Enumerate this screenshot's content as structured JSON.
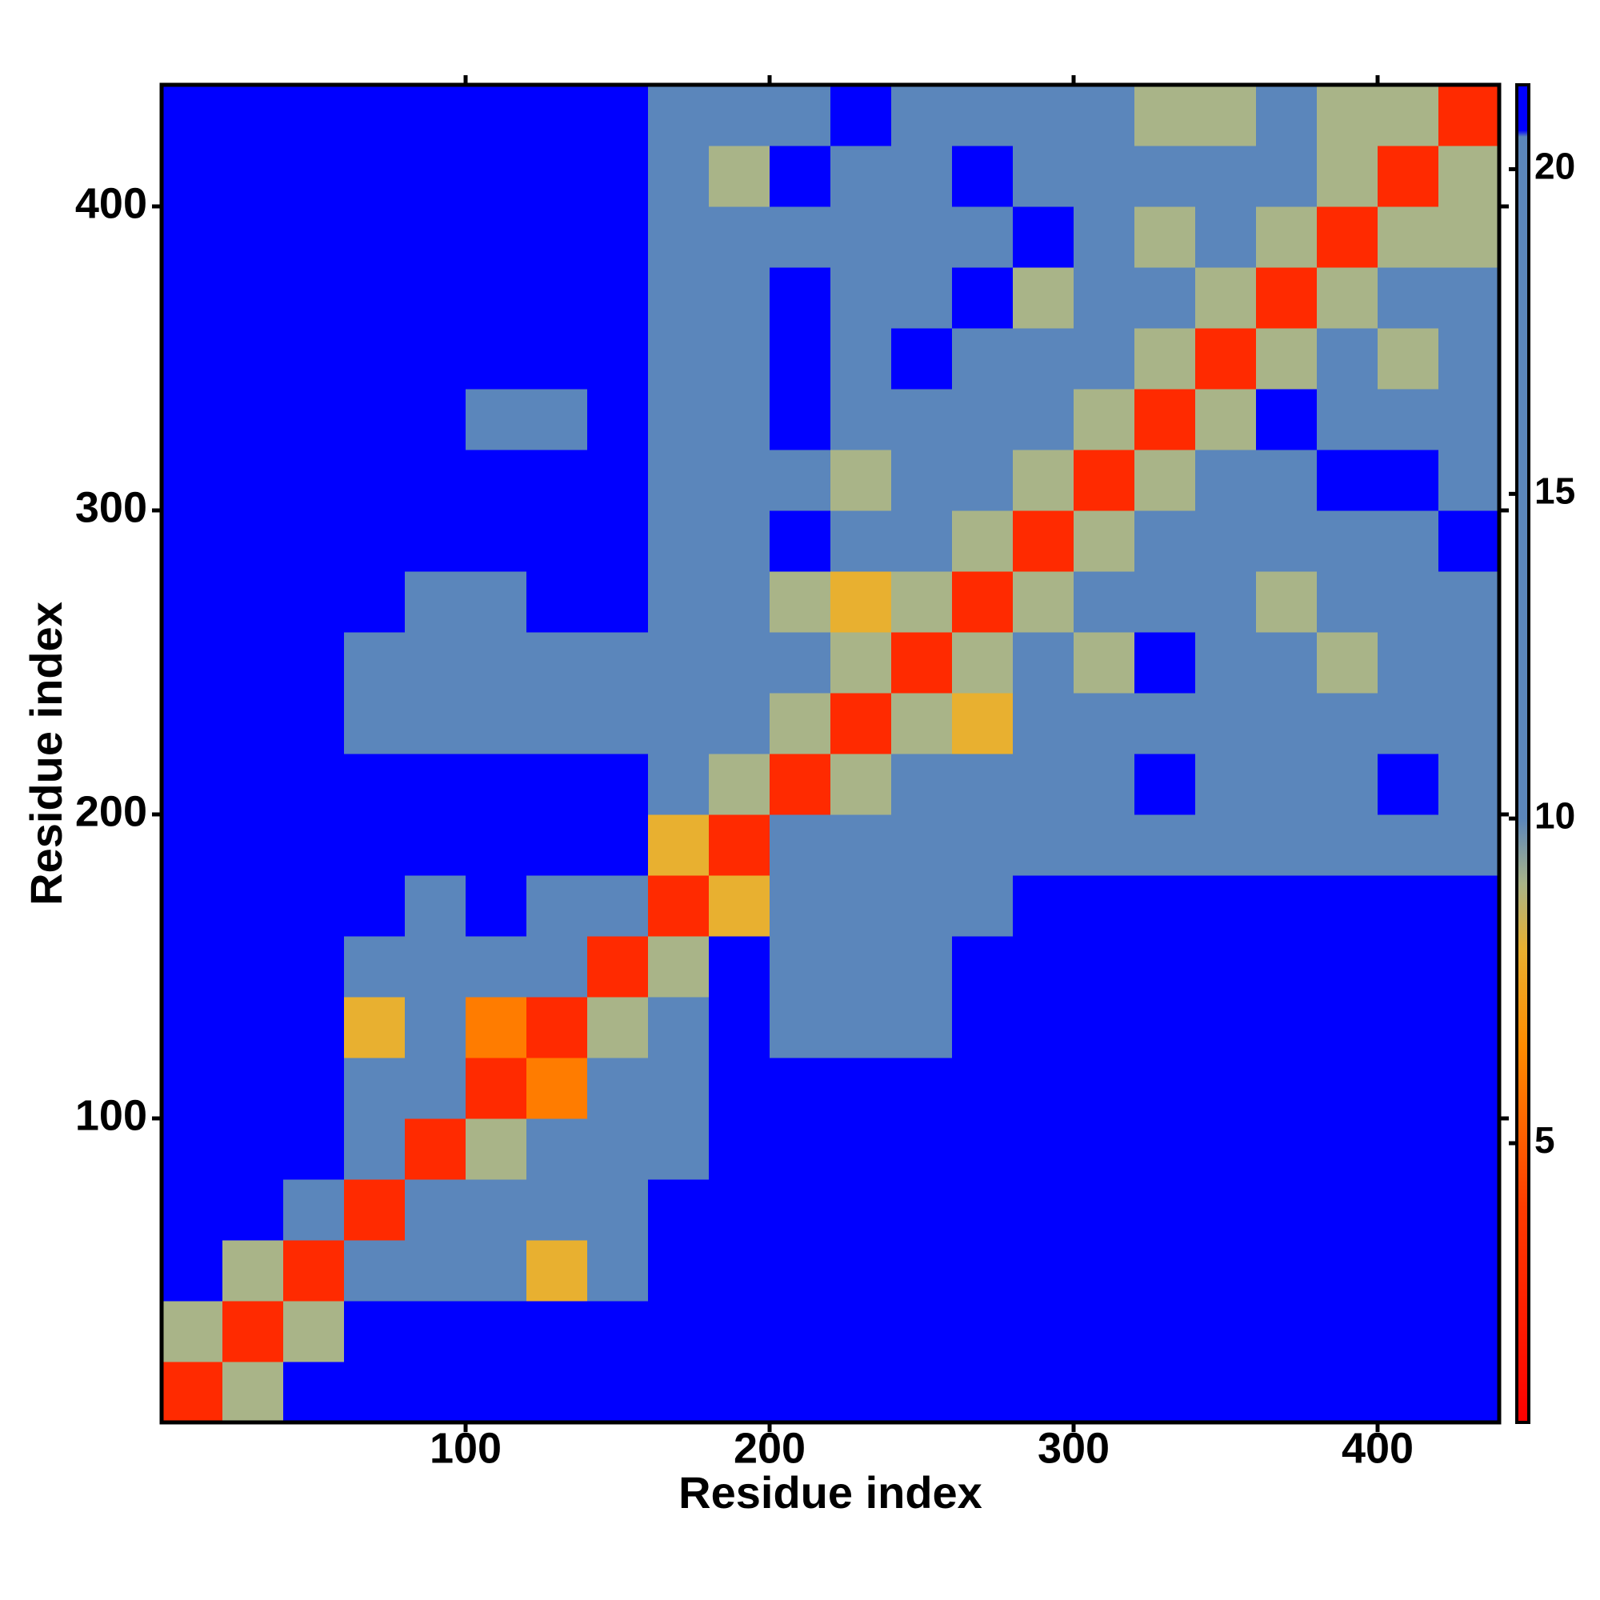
{
  "chart_data": {
    "type": "heatmap",
    "xlabel": "Residue index",
    "ylabel": "Residue index",
    "xlim": [
      0,
      440
    ],
    "ylim": [
      0,
      440
    ],
    "xticks": [
      100,
      200,
      300,
      400
    ],
    "yticks": [
      100,
      200,
      300,
      400
    ],
    "z": [
      [
        3,
        9,
        21,
        21,
        21,
        21,
        21,
        21,
        21,
        21,
        21,
        21,
        21,
        21,
        21,
        21,
        21,
        21,
        21,
        21,
        21,
        21
      ],
      [
        9,
        3,
        9,
        21,
        21,
        21,
        21,
        21,
        21,
        21,
        21,
        21,
        21,
        21,
        21,
        21,
        21,
        21,
        21,
        21,
        21,
        21
      ],
      [
        21,
        9,
        3,
        12,
        12,
        12,
        8,
        15,
        21,
        21,
        21,
        21,
        21,
        21,
        21,
        21,
        21,
        21,
        21,
        21,
        21,
        21
      ],
      [
        21,
        21,
        12,
        3,
        12,
        12,
        12,
        15,
        21,
        21,
        21,
        21,
        21,
        21,
        21,
        21,
        21,
        21,
        21,
        21,
        21,
        21
      ],
      [
        21,
        21,
        21,
        12,
        3,
        9,
        12,
        15,
        18,
        21,
        21,
        21,
        21,
        21,
        21,
        21,
        21,
        21,
        21,
        21,
        21,
        21
      ],
      [
        21,
        21,
        21,
        12,
        12,
        3,
        6,
        12,
        17,
        21,
        21,
        21,
        21,
        21,
        21,
        21,
        21,
        21,
        21,
        21,
        21,
        21
      ],
      [
        21,
        21,
        21,
        8,
        12,
        6,
        3,
        9,
        15,
        21,
        18,
        18,
        18,
        21,
        21,
        21,
        21,
        21,
        21,
        21,
        21,
        21
      ],
      [
        21,
        21,
        21,
        15,
        15,
        12,
        12,
        3,
        9,
        21,
        18,
        18,
        18,
        21,
        21,
        21,
        21,
        21,
        21,
        21,
        21,
        21
      ],
      [
        21,
        21,
        21,
        21,
        16,
        21,
        17,
        12,
        3,
        8,
        17,
        17,
        17,
        17,
        21,
        21,
        21,
        21,
        21,
        21,
        21,
        21
      ],
      [
        21,
        21,
        21,
        21,
        21,
        21,
        21,
        21,
        8,
        3,
        15,
        16,
        16,
        17,
        16,
        16,
        16,
        16,
        16,
        16,
        16,
        16
      ],
      [
        21,
        21,
        21,
        21,
        21,
        21,
        21,
        21,
        18,
        9,
        3,
        9,
        15,
        15,
        15,
        15,
        21,
        15,
        15,
        15,
        21,
        15
      ],
      [
        21,
        21,
        21,
        17,
        17,
        17,
        17,
        15,
        15,
        15,
        9,
        3,
        9,
        8,
        15,
        15,
        15,
        15,
        15,
        15,
        15,
        15
      ],
      [
        21,
        21,
        21,
        17,
        17,
        17,
        17,
        16,
        15,
        15,
        15,
        9,
        3,
        9,
        15,
        9,
        21,
        15,
        15,
        9,
        15,
        15
      ],
      [
        21,
        21,
        21,
        21,
        17,
        17,
        21,
        21,
        15,
        15,
        9,
        8,
        9,
        3,
        9,
        15,
        15,
        15,
        9,
        15,
        15,
        15
      ],
      [
        21,
        21,
        21,
        21,
        21,
        21,
        21,
        21,
        15,
        15,
        21,
        15,
        15,
        9,
        3,
        9,
        15,
        15,
        15,
        15,
        15,
        21
      ],
      [
        21,
        21,
        21,
        21,
        21,
        21,
        21,
        21,
        15,
        15,
        15,
        9,
        15,
        15,
        9,
        3,
        9,
        15,
        15,
        21,
        21,
        15
      ],
      [
        21,
        21,
        21,
        21,
        21,
        20,
        20,
        21,
        15,
        15,
        21,
        15,
        15,
        15,
        15,
        9,
        3,
        9,
        21,
        15,
        15,
        15
      ],
      [
        21,
        21,
        21,
        21,
        21,
        21,
        21,
        21,
        15,
        15,
        21,
        15,
        21,
        15,
        15,
        15,
        9,
        3,
        9,
        15,
        9,
        15
      ],
      [
        21,
        21,
        21,
        21,
        21,
        21,
        21,
        21,
        16,
        15,
        21,
        15,
        15,
        21,
        9,
        15,
        15,
        9,
        3,
        9,
        15,
        15
      ],
      [
        21,
        21,
        21,
        21,
        21,
        21,
        21,
        21,
        16,
        15,
        15,
        15,
        15,
        15,
        21,
        15,
        9,
        15,
        9,
        3,
        9,
        9
      ],
      [
        21,
        21,
        21,
        21,
        21,
        21,
        21,
        21,
        17,
        9,
        21,
        15,
        15,
        21,
        15,
        15,
        15,
        15,
        15,
        9,
        3,
        9
      ],
      [
        21,
        21,
        21,
        21,
        21,
        21,
        21,
        21,
        17,
        15,
        15,
        21,
        15,
        15,
        15,
        15,
        9,
        9,
        15,
        9,
        9,
        3
      ]
    ],
    "colorbar": {
      "lim": [
        0.7,
        21.3
      ],
      "ticks": [
        5,
        10,
        15,
        20
      ],
      "colorscale": [
        {
          "value": 0.7,
          "color": "#ff0000"
        },
        {
          "value": 4,
          "color": "#ff3c00"
        },
        {
          "value": 6.5,
          "color": "#ff8c00"
        },
        {
          "value": 8,
          "color": "#e8b030"
        },
        {
          "value": 9,
          "color": "#a9b488"
        },
        {
          "value": 10,
          "color": "#5b86bb"
        },
        {
          "value": 20.5,
          "color": "#5b86bb"
        },
        {
          "value": 20.6,
          "color": "#0000ff"
        },
        {
          "value": 21.3,
          "color": "#0000ff"
        }
      ]
    }
  }
}
